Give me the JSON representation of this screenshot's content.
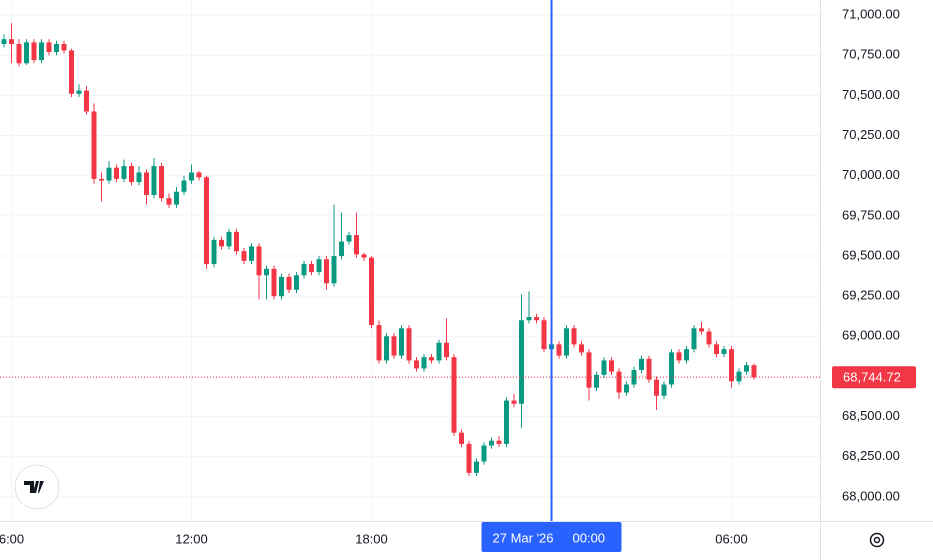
{
  "chart_data": {
    "type": "candlestick",
    "categories": [
      null,
      "6:00",
      null,
      null,
      null,
      null,
      null,
      null,
      null,
      null,
      null,
      null,
      null,
      null,
      null,
      null,
      null,
      null,
      null,
      null,
      null,
      null,
      null,
      null,
      null,
      "12:00",
      null,
      null,
      null,
      null,
      null,
      null,
      null,
      null,
      null,
      null,
      null,
      null,
      null,
      null,
      null,
      null,
      null,
      null,
      null,
      null,
      null,
      null,
      null,
      "18:00",
      null,
      null,
      null,
      null,
      null,
      null,
      null,
      null,
      null,
      null,
      null,
      null,
      null,
      null,
      null,
      null,
      null,
      null,
      null,
      null,
      null,
      null,
      null,
      "00:00",
      null,
      null,
      null,
      null,
      null,
      null,
      null,
      null,
      null,
      null,
      null,
      null,
      null,
      null,
      null,
      null,
      null,
      null,
      null,
      null,
      null,
      null,
      null,
      "06:00",
      null,
      null,
      null
    ],
    "ohlc": [
      [
        70820,
        70880,
        70800,
        70850
      ],
      [
        70850,
        70950,
        70700,
        70820
      ],
      [
        70820,
        70850,
        70680,
        70700
      ],
      [
        70700,
        70850,
        70690,
        70830
      ],
      [
        70830,
        70850,
        70700,
        70720
      ],
      [
        70720,
        70850,
        70700,
        70830
      ],
      [
        70830,
        70850,
        70750,
        70770
      ],
      [
        70770,
        70840,
        70750,
        70820
      ],
      [
        70820,
        70840,
        70760,
        70780
      ],
      [
        70780,
        70790,
        70490,
        70510
      ],
      [
        70510,
        70570,
        70490,
        70530
      ],
      [
        70530,
        70560,
        70380,
        70400
      ],
      [
        70400,
        70450,
        69950,
        69980
      ],
      [
        69980,
        70020,
        69840,
        69970
      ],
      [
        69970,
        70090,
        69950,
        70050
      ],
      [
        70050,
        70070,
        69960,
        69980
      ],
      [
        69980,
        70100,
        69960,
        70060
      ],
      [
        70060,
        70080,
        69940,
        69960
      ],
      [
        69960,
        70060,
        69940,
        70020
      ],
      [
        70020,
        70040,
        69820,
        69880
      ],
      [
        69880,
        70110,
        69860,
        70060
      ],
      [
        70060,
        70080,
        69840,
        69860
      ],
      [
        69860,
        69890,
        69800,
        69820
      ],
      [
        69820,
        69930,
        69800,
        69900
      ],
      [
        69900,
        70000,
        69880,
        69970
      ],
      [
        69970,
        70070,
        69950,
        70020
      ],
      [
        70020,
        70030,
        69970,
        69990
      ],
      [
        69990,
        70000,
        69420,
        69450
      ],
      [
        69450,
        69620,
        69430,
        69600
      ],
      [
        69600,
        69620,
        69540,
        69560
      ],
      [
        69560,
        69670,
        69540,
        69650
      ],
      [
        69650,
        69670,
        69510,
        69530
      ],
      [
        69530,
        69550,
        69450,
        69470
      ],
      [
        69470,
        69580,
        69450,
        69560
      ],
      [
        69560,
        69580,
        69230,
        69380
      ],
      [
        69380,
        69440,
        69230,
        69420
      ],
      [
        69420,
        69440,
        69230,
        69250
      ],
      [
        69250,
        69390,
        69230,
        69370
      ],
      [
        69370,
        69390,
        69270,
        69290
      ],
      [
        69290,
        69400,
        69270,
        69380
      ],
      [
        69380,
        69470,
        69360,
        69450
      ],
      [
        69450,
        69470,
        69380,
        69400
      ],
      [
        69400,
        69500,
        69380,
        69480
      ],
      [
        69480,
        69500,
        69290,
        69330
      ],
      [
        69330,
        69820,
        69310,
        69500
      ],
      [
        69500,
        69770,
        69480,
        69590
      ],
      [
        69590,
        69650,
        69570,
        69630
      ],
      [
        69630,
        69770,
        69490,
        69510
      ],
      [
        69510,
        69520,
        69470,
        69490
      ],
      [
        69490,
        69500,
        69050,
        69070
      ],
      [
        69070,
        69100,
        68830,
        68850
      ],
      [
        68850,
        69020,
        68830,
        69000
      ],
      [
        69000,
        69020,
        68860,
        68880
      ],
      [
        68880,
        69070,
        68860,
        69050
      ],
      [
        69050,
        69070,
        68830,
        68850
      ],
      [
        68850,
        68870,
        68780,
        68800
      ],
      [
        68800,
        68890,
        68780,
        68870
      ],
      [
        68870,
        68890,
        68830,
        68850
      ],
      [
        68850,
        68980,
        68830,
        68960
      ],
      [
        68960,
        69110,
        68850,
        68870
      ],
      [
        68870,
        68890,
        68380,
        68400
      ],
      [
        68400,
        68420,
        68310,
        68330
      ],
      [
        68330,
        68350,
        68130,
        68150
      ],
      [
        68150,
        68240,
        68130,
        68220
      ],
      [
        68220,
        68340,
        68200,
        68320
      ],
      [
        68320,
        68370,
        68300,
        68350
      ],
      [
        68350,
        68380,
        68310,
        68330
      ],
      [
        68330,
        68620,
        68310,
        68600
      ],
      [
        68600,
        68640,
        68560,
        68580
      ],
      [
        68580,
        69260,
        68430,
        69100
      ],
      [
        69100,
        69280,
        69080,
        69120
      ],
      [
        69120,
        69140,
        69080,
        69100
      ],
      [
        69100,
        69120,
        68900,
        68920
      ],
      [
        68920,
        69130,
        68900,
        68950
      ],
      [
        68950,
        68970,
        68860,
        68880
      ],
      [
        68880,
        69070,
        68860,
        69050
      ],
      [
        69050,
        69070,
        68930,
        68950
      ],
      [
        68950,
        68970,
        68880,
        68900
      ],
      [
        68900,
        68920,
        68600,
        68680
      ],
      [
        68680,
        68780,
        68660,
        68760
      ],
      [
        68760,
        68870,
        68740,
        68850
      ],
      [
        68850,
        68870,
        68760,
        68780
      ],
      [
        68780,
        68800,
        68610,
        68650
      ],
      [
        68650,
        68720,
        68630,
        68700
      ],
      [
        68700,
        68810,
        68680,
        68790
      ],
      [
        68790,
        68880,
        68770,
        68860
      ],
      [
        68860,
        68880,
        68710,
        68730
      ],
      [
        68730,
        68750,
        68540,
        68630
      ],
      [
        68630,
        68720,
        68610,
        68700
      ],
      [
        68700,
        68920,
        68680,
        68900
      ],
      [
        68900,
        68920,
        68830,
        68850
      ],
      [
        68850,
        68940,
        68830,
        68920
      ],
      [
        68920,
        69070,
        68900,
        69050
      ],
      [
        69050,
        69090,
        69010,
        69030
      ],
      [
        69030,
        69050,
        68930,
        68950
      ],
      [
        68950,
        68970,
        68870,
        68890
      ],
      [
        68890,
        68940,
        68870,
        68920
      ],
      [
        68920,
        68940,
        68680,
        68720
      ],
      [
        68720,
        68800,
        68700,
        68780
      ],
      [
        68780,
        68840,
        68760,
        68820
      ],
      [
        68820,
        68830,
        68730,
        68744.72
      ]
    ],
    "up_color": "#089981",
    "down_color": "#f23645",
    "ylim": [
      67850,
      71094
    ],
    "yticks": [
      {
        "value": 71000,
        "label": "71,000.00"
      },
      {
        "value": 70750,
        "label": "70,750.00"
      },
      {
        "value": 70500,
        "label": "70,500.00"
      },
      {
        "value": 70250,
        "label": "70,250.00"
      },
      {
        "value": 70000,
        "label": "70,000.00"
      },
      {
        "value": 69750,
        "label": "69,750.00"
      },
      {
        "value": 69500,
        "label": "69,500.00"
      },
      {
        "value": 69250,
        "label": "69,250.00"
      },
      {
        "value": 69000,
        "label": "69,000.00"
      },
      {
        "value": 68750,
        "label": "68,750.00"
      },
      {
        "value": 68500,
        "label": "68,500.00"
      },
      {
        "value": 68250,
        "label": "68,250.00"
      },
      {
        "value": 68000,
        "label": "68,000.00"
      }
    ],
    "grid": true,
    "last_price": {
      "value": 68744.72,
      "label": "68,744.72"
    },
    "crosshair_index": 73,
    "crosshair_date": "27 Mar '26",
    "crosshair_color": "#2962ff"
  }
}
